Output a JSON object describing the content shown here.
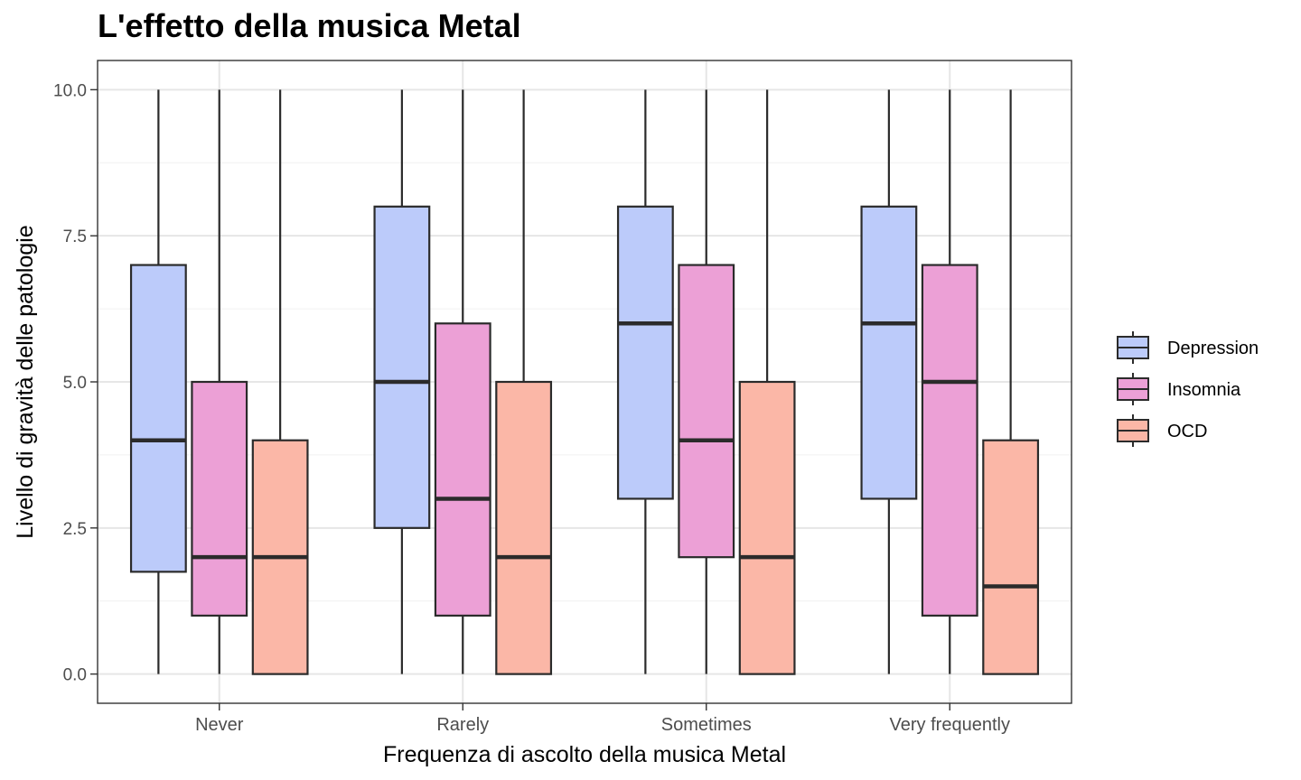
{
  "chart_data": {
    "type": "boxplot",
    "title": "L'effetto della musica Metal",
    "xlabel": "Frequenza di ascolto della musica Metal",
    "ylabel": "Livello di gravità delle patologie",
    "categories": [
      "Never",
      "Rarely",
      "Sometimes",
      "Very frequently"
    ],
    "ylim": [
      -0.5,
      10.5
    ],
    "yticks": [
      0.0,
      2.5,
      5.0,
      7.5,
      10.0
    ],
    "ytick_labels": [
      "0.0",
      "2.5",
      "5.0",
      "7.5",
      "10.0"
    ],
    "grid": true,
    "legend_position": "right",
    "series": [
      {
        "name": "Depression",
        "color": "#bccbfa",
        "boxes": [
          {
            "min": 0,
            "q1": 1.75,
            "median": 4,
            "q3": 7,
            "max": 10
          },
          {
            "min": 0,
            "q1": 2.5,
            "median": 5,
            "q3": 8,
            "max": 10
          },
          {
            "min": 0,
            "q1": 3,
            "median": 6,
            "q3": 8,
            "max": 10
          },
          {
            "min": 0,
            "q1": 3,
            "median": 6,
            "q3": 8,
            "max": 10
          }
        ]
      },
      {
        "name": "Insomnia",
        "color": "#eca0d6",
        "boxes": [
          {
            "min": 0,
            "q1": 1,
            "median": 2,
            "q3": 5,
            "max": 10
          },
          {
            "min": 0,
            "q1": 1,
            "median": 3,
            "q3": 6,
            "max": 10
          },
          {
            "min": 0,
            "q1": 2,
            "median": 4,
            "q3": 7,
            "max": 10
          },
          {
            "min": 0,
            "q1": 1,
            "median": 5,
            "q3": 7,
            "max": 10
          }
        ]
      },
      {
        "name": "OCD",
        "color": "#fbb7a7",
        "boxes": [
          {
            "min": 0,
            "q1": 0,
            "median": 2,
            "q3": 4,
            "max": 10
          },
          {
            "min": 0,
            "q1": 0,
            "median": 2,
            "q3": 5,
            "max": 10
          },
          {
            "min": 0,
            "q1": 0,
            "median": 2,
            "q3": 5,
            "max": 10
          },
          {
            "min": 0,
            "q1": 0,
            "median": 1.5,
            "q3": 4,
            "max": 10
          }
        ]
      }
    ]
  }
}
